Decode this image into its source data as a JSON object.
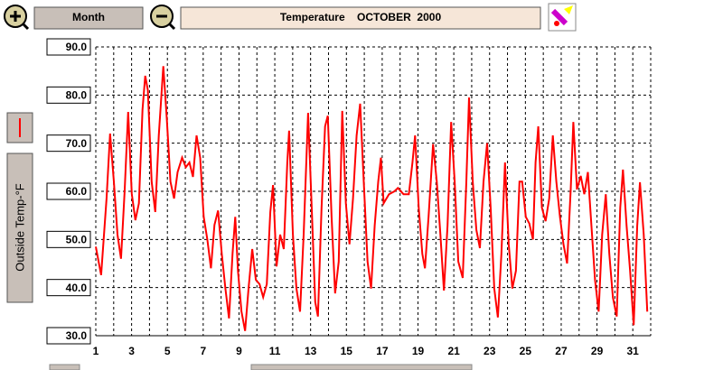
{
  "controls": {
    "period": "Month"
  },
  "chart_data": {
    "type": "line",
    "title": "Temperature    OCTOBER  2000",
    "ylabel": "Outside Temp-°F",
    "series": [
      {
        "color": "#ff0000",
        "x": [
          1.0,
          1.3,
          1.6,
          1.8,
          2.01,
          2.21,
          2.41,
          2.61,
          2.81,
          3.01,
          3.21,
          3.41,
          3.61,
          3.76,
          3.91,
          4.12,
          4.32,
          4.52,
          4.77,
          4.97,
          5.17,
          5.37,
          5.57,
          5.82,
          6.03,
          6.23,
          6.43,
          6.63,
          6.83,
          7.03,
          7.23,
          7.43,
          7.63,
          7.83,
          8.04,
          8.24,
          8.44,
          8.64,
          8.79,
          8.94,
          9.14,
          9.34,
          9.54,
          9.74,
          9.94,
          10.15,
          10.35,
          10.55,
          10.75,
          10.9,
          11.1,
          11.3,
          11.5,
          11.7,
          11.8,
          12.01,
          12.21,
          12.41,
          12.61,
          12.86,
          13.06,
          13.26,
          13.41,
          13.61,
          13.81,
          13.96,
          14.17,
          14.37,
          14.57,
          14.77,
          14.97,
          15.17,
          15.37,
          15.57,
          15.77,
          15.97,
          16.18,
          16.38,
          16.58,
          16.78,
          16.93,
          17.08,
          17.38,
          17.68,
          17.88,
          18.19,
          18.49,
          18.69,
          18.84,
          19.04,
          19.24,
          19.39,
          19.59,
          19.84,
          20.05,
          20.25,
          20.45,
          20.65,
          20.85,
          21.05,
          21.25,
          21.5,
          21.7,
          21.85,
          22.06,
          22.26,
          22.46,
          22.66,
          22.86,
          23.06,
          23.26,
          23.46,
          23.66,
          23.86,
          24.07,
          24.27,
          24.47,
          24.67,
          24.82,
          25.02,
          25.22,
          25.42,
          25.57,
          25.72,
          25.92,
          26.13,
          26.33,
          26.53,
          26.73,
          26.93,
          27.13,
          27.33,
          27.53,
          27.68,
          27.88,
          28.09,
          28.29,
          28.49,
          28.69,
          28.89,
          29.09,
          29.29,
          29.49,
          29.69,
          29.89,
          30.1,
          30.3,
          30.45,
          30.65,
          30.85,
          31.05,
          31.25,
          31.4,
          31.61,
          31.81
        ],
        "values": [
          48.5,
          42.6,
          58.5,
          72,
          62,
          51,
          46,
          60,
          76.5,
          59.5,
          54,
          57.5,
          77,
          84,
          81,
          62,
          55.7,
          71.6,
          86,
          75,
          62,
          58.5,
          64,
          67,
          65,
          66,
          63,
          71.6,
          67,
          54.7,
          50,
          44,
          53,
          56,
          47,
          39.8,
          33.6,
          47,
          54.7,
          43.5,
          35,
          31,
          40,
          48,
          41.6,
          40.7,
          38,
          40.7,
          55.7,
          61.3,
          44.4,
          51,
          48,
          66,
          72.6,
          51,
          39.8,
          35,
          51,
          76.3,
          56.6,
          37,
          34,
          56.6,
          73.5,
          75.7,
          54.7,
          38.8,
          45.4,
          76.7,
          57.5,
          49,
          58.5,
          71.6,
          78.2,
          62,
          45.4,
          39.8,
          52.9,
          62,
          67,
          57.5,
          59.4,
          60,
          60.7,
          59.4,
          59.4,
          66,
          71.6,
          56.6,
          47,
          44,
          54.7,
          69.8,
          62,
          51,
          39.4,
          52.9,
          74.4,
          62,
          45.4,
          42,
          62,
          79.5,
          62,
          52,
          48.2,
          62,
          70,
          56.6,
          39.8,
          33.8,
          47,
          66,
          49,
          39.8,
          43.5,
          62,
          62,
          54.7,
          53.3,
          50,
          66,
          73.5,
          56.6,
          53.8,
          58.5,
          71.6,
          62,
          54.7,
          49,
          45,
          60.4,
          74.4,
          60.4,
          63.2,
          59.4,
          64,
          52.9,
          41.6,
          35,
          51,
          59.4,
          47,
          37.9,
          34,
          56.6,
          64.5,
          52.9,
          43.5,
          32.2,
          52.9,
          61.9,
          51,
          35
        ]
      }
    ],
    "xlim": [
      1,
      32
    ],
    "xticks": [
      1,
      3,
      5,
      7,
      9,
      11,
      13,
      15,
      17,
      19,
      21,
      23,
      25,
      27,
      29,
      31
    ],
    "x_minor_ticks": [
      2,
      4,
      6,
      8,
      10,
      12,
      14,
      16,
      18,
      20,
      22,
      24,
      26,
      28,
      30,
      32
    ],
    "ylim": [
      30,
      90
    ],
    "yticks": [
      {
        "value": 30,
        "label": "30.0"
      },
      {
        "value": 40,
        "label": "40.0"
      },
      {
        "value": 50,
        "label": "50.0"
      },
      {
        "value": 60,
        "label": "60.0"
      },
      {
        "value": 70,
        "label": "70.0"
      },
      {
        "value": 80,
        "label": "80.0"
      },
      {
        "value": 90,
        "label": "90.0"
      }
    ],
    "grid": true
  }
}
